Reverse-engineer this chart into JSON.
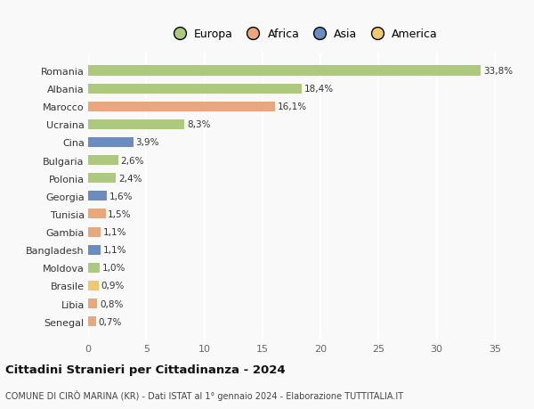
{
  "countries": [
    "Romania",
    "Albania",
    "Marocco",
    "Ucraina",
    "Cina",
    "Bulgaria",
    "Polonia",
    "Georgia",
    "Tunisia",
    "Gambia",
    "Bangladesh",
    "Moldova",
    "Brasile",
    "Libia",
    "Senegal"
  ],
  "values": [
    33.8,
    18.4,
    16.1,
    8.3,
    3.9,
    2.6,
    2.4,
    1.6,
    1.5,
    1.1,
    1.1,
    1.0,
    0.9,
    0.8,
    0.7
  ],
  "labels": [
    "33,8%",
    "18,4%",
    "16,1%",
    "8,3%",
    "3,9%",
    "2,6%",
    "2,4%",
    "1,6%",
    "1,5%",
    "1,1%",
    "1,1%",
    "1,0%",
    "0,9%",
    "0,8%",
    "0,7%"
  ],
  "continents": [
    "Europa",
    "Europa",
    "Africa",
    "Europa",
    "Asia",
    "Europa",
    "Europa",
    "Asia",
    "Africa",
    "Africa",
    "Asia",
    "Europa",
    "America",
    "Africa",
    "Africa"
  ],
  "colors": {
    "Europa": "#adc97e",
    "Africa": "#e8a87c",
    "Asia": "#6b8cbf",
    "America": "#f0c96e"
  },
  "legend_order": [
    "Europa",
    "Africa",
    "Asia",
    "America"
  ],
  "legend_colors": [
    "#adc97e",
    "#e8a87c",
    "#6b8cbf",
    "#f0c96e"
  ],
  "xlim": [
    0,
    37
  ],
  "xticks": [
    0,
    5,
    10,
    15,
    20,
    25,
    30,
    35
  ],
  "title": "Cittadini Stranieri per Cittadinanza - 2024",
  "subtitle": "COMUNE DI CIRÒ MARINA (KR) - Dati ISTAT al 1° gennaio 2024 - Elaborazione TUTTITALIA.IT",
  "bg_color": "#f9f9f9",
  "grid_color": "#ffffff",
  "bar_height": 0.55
}
